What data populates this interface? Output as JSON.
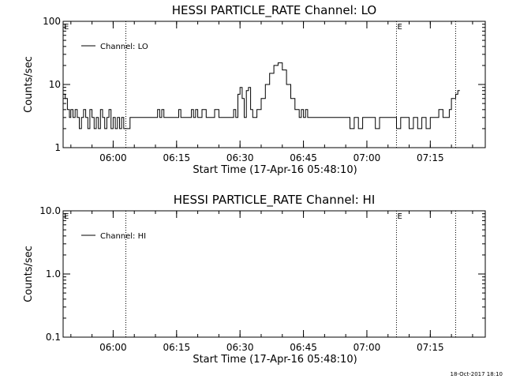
{
  "footer_timestamp": "18-Oct-2017 18:10",
  "chart_data": [
    {
      "type": "line",
      "title": "HESSI PARTICLE_RATE Channel: LO",
      "xlabel": "Start Time (17-Apr-16 05:48:10)",
      "ylabel": "Counts/sec",
      "y_scale": "log",
      "ylim": [
        1,
        100
      ],
      "y_ticks": [
        1,
        10,
        100
      ],
      "y_tick_labels": [
        "1",
        "10",
        "100"
      ],
      "xlim": [
        "05:48:10",
        "07:28:00"
      ],
      "x_ticks": [
        "06:00",
        "06:15",
        "06:30",
        "06:45",
        "07:00",
        "07:15"
      ],
      "vlines": [
        "06:03:00",
        "07:07:00",
        "07:21:00"
      ],
      "markers": [
        {
          "text": "E",
          "time": "05:48:10"
        },
        {
          "text": "E",
          "time": "07:07:00"
        }
      ],
      "legend": {
        "position": "top-left",
        "entries": [
          "Channel: LO"
        ]
      },
      "series": [
        {
          "name": "Channel: LO",
          "x": [
            "05:48:10",
            "05:48:40",
            "05:49:10",
            "05:49:40",
            "05:50:00",
            "05:50:30",
            "05:51:00",
            "05:51:30",
            "05:52:00",
            "05:52:30",
            "05:53:00",
            "05:53:30",
            "05:54:00",
            "05:54:30",
            "05:55:00",
            "05:55:30",
            "05:56:00",
            "05:56:30",
            "05:57:00",
            "05:57:30",
            "05:58:00",
            "05:58:30",
            "05:59:00",
            "05:59:30",
            "06:00:00",
            "06:00:30",
            "06:01:00",
            "06:01:30",
            "06:02:00",
            "06:02:30",
            "06:03:00",
            "06:04:00",
            "06:05:00",
            "06:06:00",
            "06:07:00",
            "06:08:00",
            "06:09:00",
            "06:10:00",
            "06:10:30",
            "06:11:00",
            "06:11:30",
            "06:12:00",
            "06:13:00",
            "06:14:00",
            "06:15:00",
            "06:15:30",
            "06:16:00",
            "06:17:00",
            "06:18:00",
            "06:18:30",
            "06:19:00",
            "06:19:30",
            "06:20:00",
            "06:20:30",
            "06:21:00",
            "06:22:00",
            "06:23:00",
            "06:24:00",
            "06:25:00",
            "06:26:00",
            "06:27:00",
            "06:28:00",
            "06:28:30",
            "06:29:00",
            "06:29:30",
            "06:30:00",
            "06:30:30",
            "06:31:00",
            "06:31:30",
            "06:32:00",
            "06:32:30",
            "06:33:00",
            "06:34:00",
            "06:35:00",
            "06:36:00",
            "06:37:00",
            "06:38:00",
            "06:39:00",
            "06:40:00",
            "06:41:00",
            "06:42:00",
            "06:43:00",
            "06:44:00",
            "06:44:30",
            "06:45:00",
            "06:45:30",
            "06:46:00",
            "06:47:00",
            "06:48:00",
            "06:49:00",
            "06:50:00",
            "06:51:00",
            "06:52:00",
            "06:53:00",
            "06:54:00",
            "06:55:00",
            "06:56:00",
            "06:57:00",
            "06:58:00",
            "06:59:00",
            "07:00:00",
            "07:01:00",
            "07:02:00",
            "07:03:00",
            "07:04:00",
            "07:05:00",
            "07:06:00",
            "07:07:00",
            "07:08:00",
            "07:09:00",
            "07:10:00",
            "07:11:00",
            "07:12:00",
            "07:13:00",
            "07:14:00",
            "07:15:00",
            "07:16:00",
            "07:17:00",
            "07:18:00",
            "07:19:00",
            "07:19:30",
            "07:20:00",
            "07:21:00",
            "07:21:30",
            "07:22:00"
          ],
          "values": [
            7,
            6,
            4,
            3,
            4,
            3,
            4,
            3,
            2,
            3,
            4,
            3,
            2,
            4,
            3,
            2,
            3,
            2,
            4,
            3,
            2,
            3,
            4,
            2,
            3,
            2,
            3,
            2,
            3,
            2,
            2,
            3,
            3,
            3,
            3,
            3,
            3,
            3,
            4,
            3,
            4,
            3,
            3,
            3,
            3,
            4,
            3,
            3,
            3,
            4,
            3,
            4,
            3,
            3,
            4,
            3,
            3,
            4,
            3,
            3,
            3,
            3,
            4,
            3,
            7,
            9,
            6,
            3,
            8,
            9,
            4,
            3,
            4,
            6,
            10,
            15,
            20,
            22,
            17,
            10,
            6,
            4,
            3,
            4,
            3,
            4,
            3,
            3,
            3,
            3,
            3,
            3,
            3,
            3,
            3,
            3,
            2,
            3,
            2,
            3,
            3,
            3,
            2,
            3,
            3,
            3,
            3,
            2,
            3,
            3,
            2,
            3,
            2,
            3,
            2,
            3,
            3,
            4,
            3,
            3,
            4,
            6,
            7,
            8,
            8
          ]
        }
      ]
    },
    {
      "type": "line",
      "title": "HESSI PARTICLE_RATE Channel: HI",
      "xlabel": "Start Time (17-Apr-16 05:48:10)",
      "ylabel": "Counts/sec",
      "y_scale": "log",
      "ylim": [
        0.1,
        10
      ],
      "y_ticks": [
        0.1,
        1,
        10
      ],
      "y_tick_labels": [
        "0.1",
        "1.0",
        "10.0"
      ],
      "xlim": [
        "05:48:10",
        "07:28:00"
      ],
      "x_ticks": [
        "06:00",
        "06:15",
        "06:30",
        "06:45",
        "07:00",
        "07:15"
      ],
      "vlines": [
        "06:03:00",
        "07:07:00",
        "07:21:00"
      ],
      "markers": [
        {
          "text": "E",
          "time": "05:48:10"
        },
        {
          "text": "E",
          "time": "07:07:00"
        }
      ],
      "legend": {
        "position": "top-left",
        "entries": [
          "Channel: HI"
        ]
      },
      "series": [
        {
          "name": "Channel: HI",
          "x": [],
          "values": []
        }
      ]
    }
  ]
}
